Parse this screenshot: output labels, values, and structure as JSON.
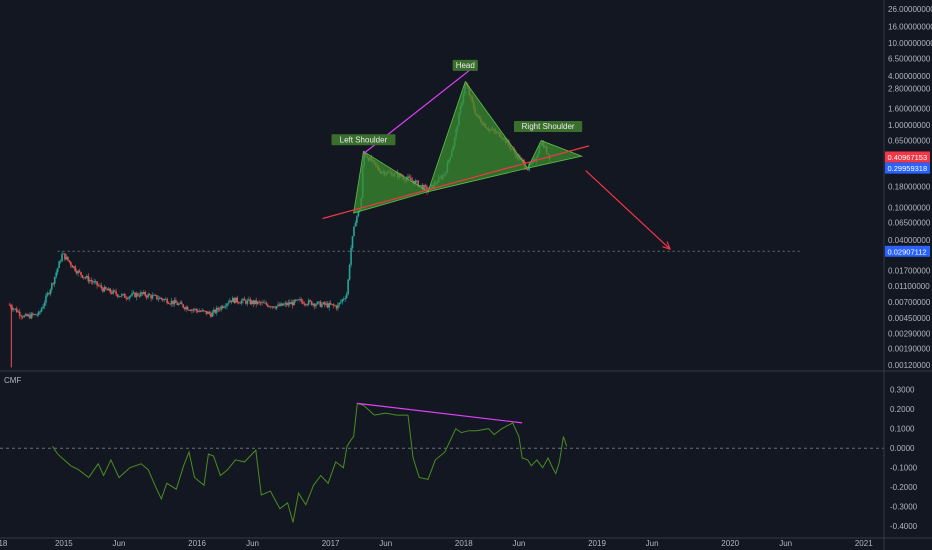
{
  "chart_data": [
    {
      "type": "candlestick",
      "scale": "log",
      "ylim": [
        0.0011,
        30
      ],
      "xlim": [
        "2014-07-10",
        "2021-02-20"
      ],
      "grid": false,
      "price_ticks": [
        "26.00000000",
        "16.00000000",
        "10.00000000",
        "6.50000000",
        "4.00000000",
        "2.80000000",
        "1.60000000",
        "1.00000000",
        "0.65000000",
        "0.40000000",
        "0.28000000",
        "0.18000000",
        "0.10000000",
        "0.06500000",
        "0.04000000",
        "0.02800000",
        "0.01700000",
        "0.01100000",
        "0.00700000",
        "0.00450000",
        "0.00290000",
        "0.00190000",
        "0.00120000"
      ],
      "price_tick_values": [
        26,
        16,
        10,
        6.5,
        4,
        2.8,
        1.6,
        1,
        0.65,
        0.4,
        0.28,
        0.18,
        0.1,
        0.065,
        0.04,
        0.028,
        0.017,
        0.011,
        0.007,
        0.0045,
        0.0029,
        0.0019,
        0.0012
      ],
      "current_price_badge": {
        "label": "0.40967153",
        "value": 0.41,
        "color": "#f23645"
      },
      "blue_badge": {
        "label": "0.29959318",
        "value": 0.3,
        "color": "#2962ff"
      },
      "level_badge": {
        "label": "0.02907112",
        "value": 0.0291,
        "color": "#2962ff"
      },
      "dotted_level": {
        "value": 0.0291,
        "from": "2014-12-15",
        "to": "2020-07-10"
      },
      "annotations": [
        {
          "text": "Left Shoulder",
          "date": "2017-04-01",
          "value": 0.62
        },
        {
          "text": "Head",
          "date": "2018-01-05",
          "value": 5.0
        },
        {
          "text": "Right Shoulder",
          "date": "2018-08-20",
          "value": 0.9
        }
      ],
      "neckline": {
        "from": {
          "date": "2016-12-10",
          "value": 0.073
        },
        "to": {
          "date": "2018-12-10",
          "value": 0.56
        },
        "color": "#f23645"
      },
      "magenta_line": {
        "from": {
          "date": "2017-04-01",
          "value": 0.45
        },
        "to": {
          "date": "2018-01-20",
          "value": 4.8
        },
        "color": "#e040fb"
      },
      "forecast_arrow": {
        "from": {
          "date": "2018-12-01",
          "value": 0.28
        },
        "to": {
          "date": "2019-07-20",
          "value": 0.031
        },
        "color": "#f23645"
      },
      "triangles": [
        [
          {
            "date": "2017-03-05",
            "value": 0.085
          },
          {
            "date": "2017-04-01",
            "value": 0.48
          },
          {
            "date": "2017-09-25",
            "value": 0.155
          }
        ],
        [
          {
            "date": "2017-09-25",
            "value": 0.155
          },
          {
            "date": "2018-01-05",
            "value": 3.4
          },
          {
            "date": "2018-06-25",
            "value": 0.3
          }
        ],
        [
          {
            "date": "2018-06-25",
            "value": 0.3
          },
          {
            "date": "2018-08-01",
            "value": 0.65
          },
          {
            "date": "2018-11-20",
            "value": 0.42
          }
        ]
      ],
      "triangle_fill": "#3a8c2f",
      "up_color": "#26a69a",
      "down_color": "#ef5350",
      "keypoints": [
        [
          "2014-08-05",
          0.0065
        ],
        [
          "2014-09-15",
          0.0046
        ],
        [
          "2014-10-25",
          0.005
        ],
        [
          "2014-12-01",
          0.012
        ],
        [
          "2014-12-28",
          0.027
        ],
        [
          "2015-02-10",
          0.016
        ],
        [
          "2015-04-20",
          0.01
        ],
        [
          "2015-06-15",
          0.0082
        ],
        [
          "2015-08-01",
          0.0088
        ],
        [
          "2015-10-10",
          0.0074
        ],
        [
          "2015-12-20",
          0.0057
        ],
        [
          "2016-02-10",
          0.005
        ],
        [
          "2016-04-01",
          0.0075
        ],
        [
          "2016-06-15",
          0.0068
        ],
        [
          "2016-08-10",
          0.0062
        ],
        [
          "2016-10-10",
          0.0072
        ],
        [
          "2016-12-01",
          0.0066
        ],
        [
          "2017-01-20",
          0.0062
        ],
        [
          "2017-02-15",
          0.009
        ],
        [
          "2017-02-25",
          0.03
        ],
        [
          "2017-03-10",
          0.07
        ],
        [
          "2017-03-25",
          0.105
        ],
        [
          "2017-04-01",
          0.47
        ],
        [
          "2017-05-15",
          0.28
        ],
        [
          "2017-07-01",
          0.25
        ],
        [
          "2017-08-15",
          0.21
        ],
        [
          "2017-09-25",
          0.16
        ],
        [
          "2017-11-10",
          0.26
        ],
        [
          "2017-12-05",
          0.62
        ],
        [
          "2017-12-25",
          1.8
        ],
        [
          "2018-01-05",
          3.3
        ],
        [
          "2018-02-05",
          1.3
        ],
        [
          "2018-03-10",
          0.9
        ],
        [
          "2018-04-15",
          0.75
        ],
        [
          "2018-05-25",
          0.43
        ],
        [
          "2018-06-25",
          0.3
        ],
        [
          "2018-07-15",
          0.38
        ],
        [
          "2018-08-01",
          0.63
        ],
        [
          "2018-08-25",
          0.41
        ]
      ]
    },
    {
      "type": "line",
      "title": "CMF",
      "ylim": [
        -0.45,
        0.36
      ],
      "ticks": [
        "0.3000",
        "0.2000",
        "0.1000",
        "0.0000",
        "-0.1000",
        "-0.2000",
        "-0.3000",
        "-0.4000"
      ],
      "tick_values": [
        0.3,
        0.2,
        0.1,
        0,
        -0.1,
        -0.2,
        -0.3,
        -0.4
      ],
      "zero_line": 0,
      "line_color": "#4c8c21",
      "divergence_line": {
        "from": {
          "date": "2017-03-15",
          "value": 0.23
        },
        "to": {
          "date": "2018-06-10",
          "value": 0.13
        },
        "color": "#e040fb"
      },
      "points": [
        [
          "2014-12-01",
          0.01
        ],
        [
          "2014-12-15",
          -0.03
        ],
        [
          "2015-01-20",
          -0.09
        ],
        [
          "2015-02-10",
          -0.11
        ],
        [
          "2015-03-10",
          -0.15
        ],
        [
          "2015-04-05",
          -0.08
        ],
        [
          "2015-04-20",
          -0.14
        ],
        [
          "2015-05-10",
          -0.06
        ],
        [
          "2015-06-01",
          -0.15
        ],
        [
          "2015-07-01",
          -0.1
        ],
        [
          "2015-08-01",
          -0.08
        ],
        [
          "2015-08-20",
          -0.11
        ],
        [
          "2015-09-10",
          -0.2
        ],
        [
          "2015-09-25",
          -0.26
        ],
        [
          "2015-10-10",
          -0.18
        ],
        [
          "2015-11-05",
          -0.21
        ],
        [
          "2015-11-25",
          -0.09
        ],
        [
          "2015-12-10",
          -0.02
        ],
        [
          "2015-12-25",
          -0.15
        ],
        [
          "2016-01-20",
          -0.19
        ],
        [
          "2016-02-01",
          -0.03
        ],
        [
          "2016-02-15",
          -0.04
        ],
        [
          "2016-03-05",
          -0.14
        ],
        [
          "2016-03-25",
          -0.11
        ],
        [
          "2016-04-15",
          -0.06
        ],
        [
          "2016-05-10",
          -0.07
        ],
        [
          "2016-06-10",
          -0.01
        ],
        [
          "2016-06-25",
          -0.24
        ],
        [
          "2016-07-20",
          -0.22
        ],
        [
          "2016-08-15",
          -0.31
        ],
        [
          "2016-09-05",
          -0.28
        ],
        [
          "2016-09-20",
          -0.38
        ],
        [
          "2016-10-05",
          -0.23
        ],
        [
          "2016-10-25",
          -0.29
        ],
        [
          "2016-11-15",
          -0.19
        ],
        [
          "2016-12-05",
          -0.14
        ],
        [
          "2016-12-25",
          -0.18
        ],
        [
          "2017-01-15",
          -0.07
        ],
        [
          "2017-02-05",
          -0.1
        ],
        [
          "2017-02-15",
          0.01
        ],
        [
          "2017-02-25",
          0.04
        ],
        [
          "2017-03-05",
          0.06
        ],
        [
          "2017-03-15",
          0.23
        ],
        [
          "2017-04-01",
          0.22
        ],
        [
          "2017-05-01",
          0.17
        ],
        [
          "2017-06-01",
          0.18
        ],
        [
          "2017-07-01",
          0.17
        ],
        [
          "2017-08-01",
          0.17
        ],
        [
          "2017-08-15",
          -0.05
        ],
        [
          "2017-09-01",
          -0.15
        ],
        [
          "2017-09-25",
          -0.16
        ],
        [
          "2017-10-15",
          -0.06
        ],
        [
          "2017-11-10",
          -0.02
        ],
        [
          "2017-11-25",
          0.04
        ],
        [
          "2017-12-10",
          0.1
        ],
        [
          "2017-12-25",
          0.08
        ],
        [
          "2018-01-15",
          0.09
        ],
        [
          "2018-02-05",
          0.09
        ],
        [
          "2018-03-10",
          0.1
        ],
        [
          "2018-03-25",
          0.07
        ],
        [
          "2018-04-15",
          0.1
        ],
        [
          "2018-05-15",
          0.13
        ],
        [
          "2018-06-01",
          0.06
        ],
        [
          "2018-06-10",
          -0.05
        ],
        [
          "2018-06-25",
          -0.06
        ],
        [
          "2018-07-05",
          -0.09
        ],
        [
          "2018-07-20",
          -0.06
        ],
        [
          "2018-08-05",
          -0.1
        ],
        [
          "2018-08-20",
          -0.05
        ],
        [
          "2018-09-01",
          -0.1
        ],
        [
          "2018-09-10",
          -0.13
        ],
        [
          "2018-09-20",
          -0.07
        ],
        [
          "2018-10-01",
          0.06
        ],
        [
          "2018-10-10",
          0.01
        ]
      ]
    }
  ],
  "date_axis": {
    "labels": [
      "18",
      "2015",
      "Jun",
      "2016",
      "Jun",
      "2017",
      "Jun",
      "2018",
      "Jun",
      "2019",
      "Jun",
      "2020",
      "Jun",
      "2021"
    ],
    "dates": [
      "2014-07-18",
      "2015-01-01",
      "2015-06-01",
      "2016-01-01",
      "2016-06-01",
      "2017-01-01",
      "2017-06-01",
      "2018-01-01",
      "2018-06-01",
      "2019-01-01",
      "2019-06-01",
      "2020-01-01",
      "2020-06-01",
      "2021-01-01"
    ]
  }
}
